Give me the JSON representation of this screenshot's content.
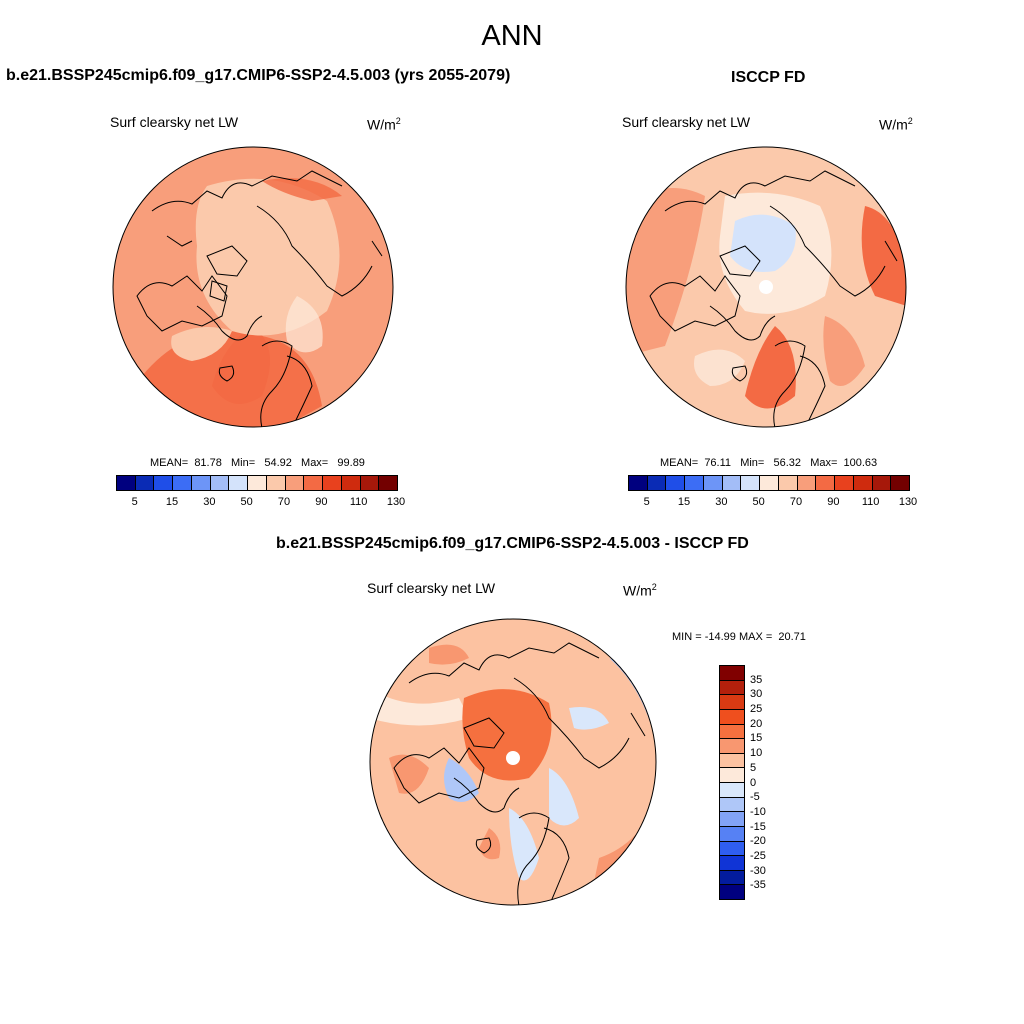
{
  "figure": {
    "season": "ANN"
  },
  "panels": [
    {
      "title": "b.e21.BSSP245cmip6.f09_g17.CMIP6-SSP2-4.5.003 (yrs 2055-2079)",
      "variable": "Surf clearsky net LW",
      "units_base": "W/m",
      "units_exp": "2",
      "stats": "MEAN=  81.78   Min=   54.92   Max=   99.89",
      "colorbar": {
        "ticks": [
          "5",
          "15",
          "30",
          "50",
          "70",
          "90",
          "110",
          "130"
        ]
      }
    },
    {
      "title": "ISCCP FD",
      "variable": "Surf clearsky net LW",
      "units_base": "W/m",
      "units_exp": "2",
      "stats": "MEAN=  76.11   Min=   56.32   Max=  100.63",
      "colorbar": {
        "ticks": [
          "5",
          "15",
          "30",
          "50",
          "70",
          "90",
          "110",
          "130"
        ]
      }
    },
    {
      "title": "b.e21.BSSP245cmip6.f09_g17.CMIP6-SSP2-4.5.003 - ISCCP FD",
      "variable": "Surf clearsky net LW",
      "units_base": "W/m",
      "units_exp": "2",
      "stats": "MIN = -14.99 MAX =  20.71",
      "colorbar": {
        "ticks": [
          "35",
          "30",
          "25",
          "20",
          "15",
          "10",
          "5",
          "0",
          "-5",
          "-10",
          "-15",
          "-20",
          "-25",
          "-30",
          "-35"
        ]
      }
    }
  ],
  "colors": {
    "abs_palette": [
      "#00007f",
      "#0a2bb5",
      "#1f4ee8",
      "#3c6df5",
      "#6d95f7",
      "#a3bdf7",
      "#d4e3fb",
      "#fde9da",
      "#fbc9ab",
      "#f89e7b",
      "#f36a44",
      "#e8411e",
      "#cf2b0e",
      "#a6180a",
      "#730000"
    ],
    "diff_palette": [
      "#800000",
      "#b3200c",
      "#d93a13",
      "#ef4f1e",
      "#f5703f",
      "#f89770",
      "#fcc2a1",
      "#fde9da",
      "#d9e7fb",
      "#afc7f8",
      "#82a3f6",
      "#5681f4",
      "#2f5ef0",
      "#1034d6",
      "#031c9e",
      "#00007f"
    ]
  }
}
